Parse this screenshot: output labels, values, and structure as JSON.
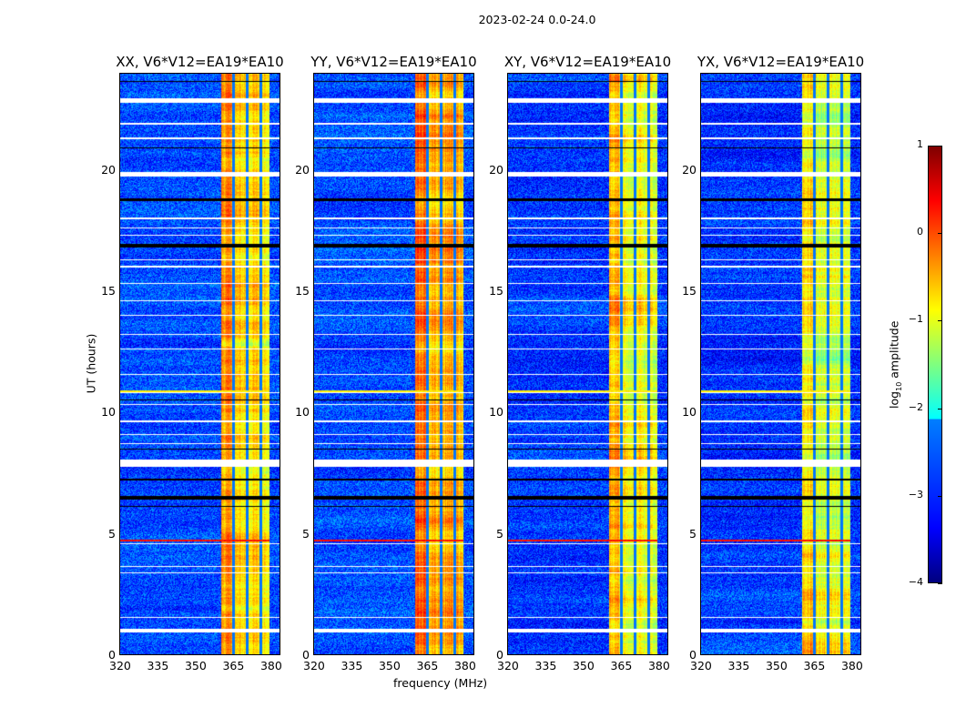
{
  "chart_data": {
    "type": "heatmap",
    "title": "2023-02-24 0.0-24.0",
    "xlabel": "frequency (MHz)",
    "ylabel": "UT (hours)",
    "xlim": [
      320,
      384
    ],
    "ylim": [
      0,
      24
    ],
    "xticks": [
      "320",
      "335",
      "350",
      "365",
      "380"
    ],
    "xtick_values": [
      320,
      335,
      350,
      365,
      380
    ],
    "yticks": [
      "0",
      "5",
      "10",
      "15",
      "20"
    ],
    "ytick_values": [
      0,
      5,
      10,
      15,
      20
    ],
    "colormap": "jet",
    "colorbar": {
      "label_prefix": "log",
      "label_sub": "10",
      "label_suffix": " amplitude",
      "range": [
        -4,
        1
      ],
      "ticks": [
        "1",
        "0",
        "−1",
        "−2",
        "−3",
        "−4"
      ],
      "tick_values": [
        1,
        0,
        -1,
        -2,
        -3,
        -4
      ]
    },
    "panels": [
      {
        "title": "XX, V6*V12=EA19*EA10",
        "band_level": -0.7,
        "background_level": -3.0
      },
      {
        "title": "YY, V6*V12=EA19*EA10",
        "band_level": -0.5,
        "background_level": -3.0
      },
      {
        "title": "XY, V6*V12=EA19*EA10",
        "band_level": -0.9,
        "background_level": -3.1
      },
      {
        "title": "YX, V6*V12=EA19*EA10",
        "band_level": -1.0,
        "background_level": -3.1
      }
    ],
    "band_mhz": [
      360.5,
      380
    ],
    "band_gaps_mhz": [
      365.5,
      371,
      376.5
    ],
    "strong_subband_mhz": [
      360.5,
      365.5
    ],
    "flagged_hours": [
      [
        0.9,
        1.05
      ],
      [
        1.5,
        1.55
      ],
      [
        3.35,
        3.4
      ],
      [
        3.6,
        3.65
      ],
      [
        4.55,
        4.6
      ],
      [
        7.75,
        8.05
      ],
      [
        8.7,
        8.74
      ],
      [
        9.05,
        9.1
      ],
      [
        9.6,
        9.65
      ],
      [
        10.3,
        10.35
      ],
      [
        10.8,
        10.84
      ],
      [
        11.55,
        11.6
      ],
      [
        12.6,
        12.64
      ],
      [
        13.2,
        13.25
      ],
      [
        14.0,
        14.05
      ],
      [
        14.6,
        14.64
      ],
      [
        15.3,
        15.35
      ],
      [
        16.0,
        16.05
      ],
      [
        16.3,
        16.34
      ],
      [
        17.3,
        17.35
      ],
      [
        17.6,
        17.64
      ],
      [
        18.0,
        18.05
      ],
      [
        19.75,
        19.95
      ],
      [
        21.3,
        21.35
      ],
      [
        21.9,
        21.95
      ],
      [
        22.8,
        23.0
      ]
    ],
    "missing_hours": [
      [
        6.1,
        6.15
      ],
      [
        6.4,
        6.55
      ],
      [
        7.2,
        7.25
      ],
      [
        8.45,
        8.52
      ],
      [
        10.5,
        10.55
      ],
      [
        16.8,
        16.95
      ],
      [
        18.75,
        18.85
      ],
      [
        20.9,
        20.95
      ],
      [
        23.65,
        23.7
      ]
    ],
    "rfi_hours": [
      [
        4.68,
        4.74,
        0.3
      ],
      [
        10.85,
        10.9,
        -0.8
      ]
    ]
  }
}
